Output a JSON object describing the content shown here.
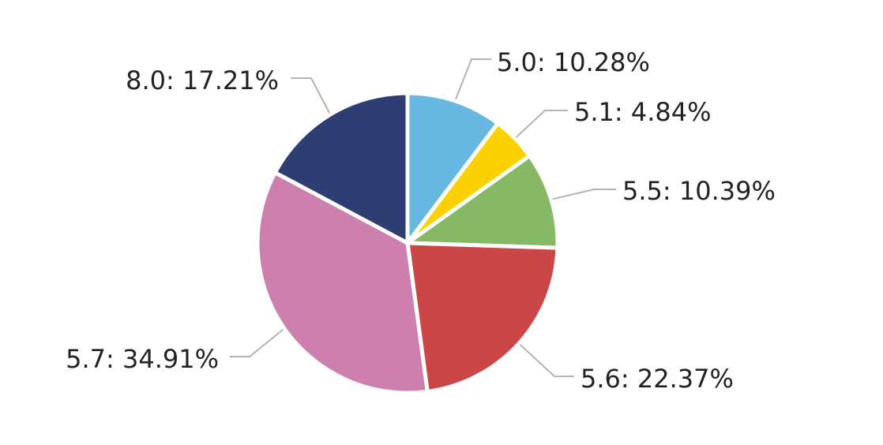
{
  "chart_data": {
    "type": "pie",
    "slices": [
      {
        "label": "5.0",
        "value": 10.28,
        "display": "5.0: 10.28%",
        "color": "#67B8E0"
      },
      {
        "label": "5.1",
        "value": 4.84,
        "display": "5.1: 4.84%",
        "color": "#FBD200"
      },
      {
        "label": "5.5",
        "value": 10.39,
        "display": "5.5: 10.39%",
        "color": "#86B865"
      },
      {
        "label": "5.6",
        "value": 22.37,
        "display": "5.6: 22.37%",
        "color": "#CB4747"
      },
      {
        "label": "5.7",
        "value": 34.91,
        "display": "5.7: 34.91%",
        "color": "#CD80AD"
      },
      {
        "label": "8.0",
        "value": 17.21,
        "display": "8.0: 17.21%",
        "color": "#2F3E72"
      }
    ],
    "start_angle_deg": 0,
    "direction": "clockwise",
    "legend": "none"
  }
}
